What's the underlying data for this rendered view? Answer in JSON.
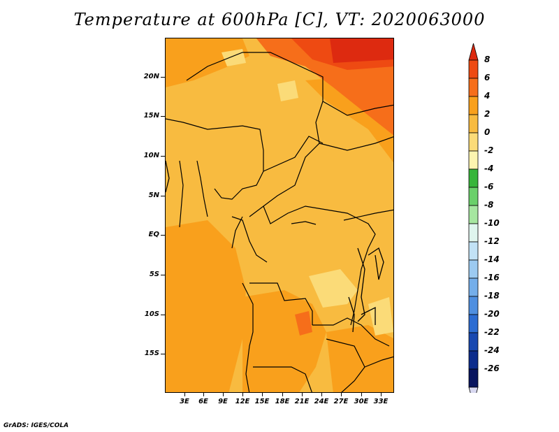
{
  "title": "Temperature at 600hPa [C], VT: 2020063000",
  "credit": "GrADS: IGES/COLA",
  "latitude_labels": [
    "20N",
    "15N",
    "10N",
    "5N",
    "EQ",
    "5S",
    "10S",
    "15S"
  ],
  "longitude_labels": [
    "3E",
    "6E",
    "9E",
    "12E",
    "15E",
    "18E",
    "21E",
    "24E",
    "27E",
    "30E",
    "33E"
  ],
  "colorbar": {
    "labels": [
      "8",
      "6",
      "4",
      "2",
      "0",
      "-2",
      "-4",
      "-6",
      "-8",
      "-10",
      "-12",
      "-14",
      "-16",
      "-18",
      "-20",
      "-22",
      "-24",
      "-26"
    ],
    "colors": [
      "#dd2a10",
      "#ee4a12",
      "#f66e1a",
      "#f9a01c",
      "#f8bb40",
      "#fbdb78",
      "#fdf5b0",
      "#37b53a",
      "#6ad06a",
      "#a6e6a0",
      "#dff5ee",
      "#c2e2f6",
      "#9ccaf1",
      "#74aeea",
      "#4f8fe0",
      "#2c6cd2",
      "#1848b0",
      "#0c2c8c",
      "#08145e",
      "#d8d8f0"
    ]
  }
}
